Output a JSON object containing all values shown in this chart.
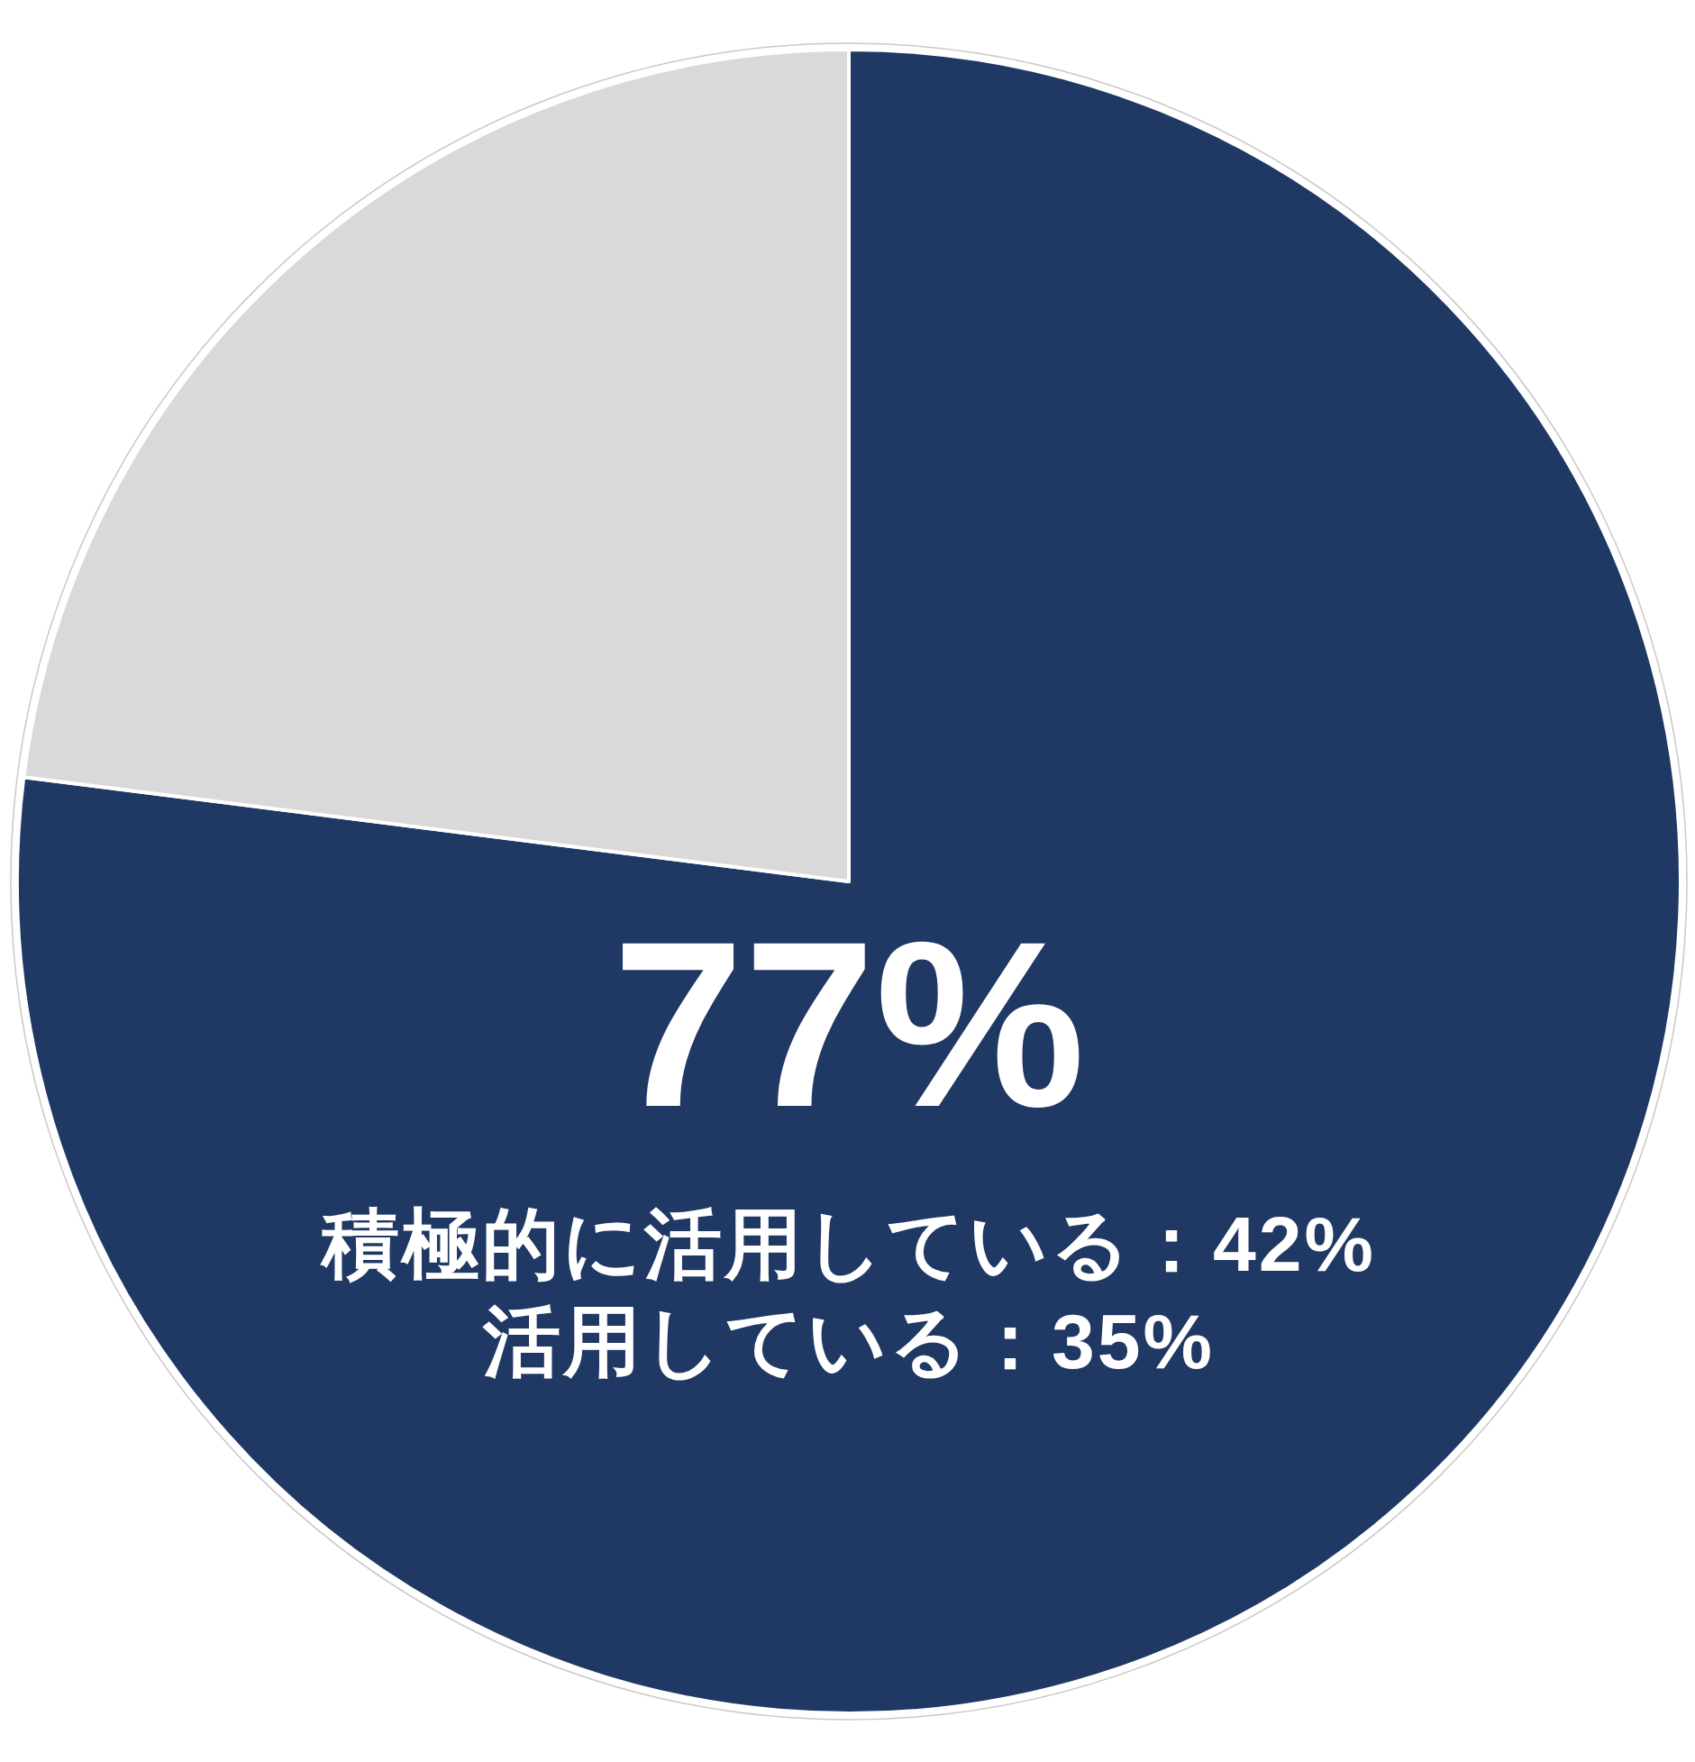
{
  "chart_data": {
    "type": "pie",
    "categories": [
      null,
      null
    ],
    "values": [
      77,
      23
    ],
    "colors": [
      "#1f3864",
      "#d9d9d9"
    ],
    "value_labels": [
      "77%",
      null
    ],
    "annotations": [
      "積極的に活用している：42%",
      "活用している：35%"
    ]
  }
}
